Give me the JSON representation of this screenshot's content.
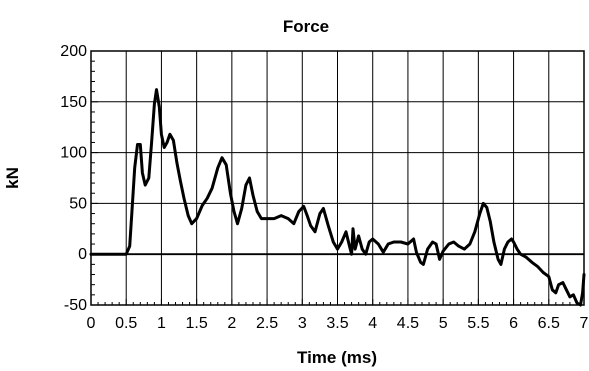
{
  "chart_data": {
    "type": "line",
    "title": "Force",
    "xlabel": "Time (ms)",
    "ylabel": "kN",
    "xlim": [
      0,
      7
    ],
    "ylim": [
      -50,
      200
    ],
    "x_ticks": [
      0,
      0.5,
      1,
      1.5,
      2,
      2.5,
      3,
      3.5,
      4,
      4.5,
      5,
      5.5,
      6,
      6.5,
      7
    ],
    "x_tick_labels": [
      "0",
      "0.5",
      "1",
      "1.5",
      "2",
      "2.5",
      "3",
      "3.5",
      "4",
      "4.5",
      "5",
      "5.5",
      "6",
      "6.5",
      "7"
    ],
    "y_ticks": [
      -50,
      0,
      50,
      100,
      150,
      200
    ],
    "y_tick_labels": [
      "-50",
      "0",
      "50",
      "100",
      "150",
      "200"
    ],
    "grid": true,
    "line_color": "#000000",
    "series": [
      {
        "x": [
          0,
          0.5,
          0.55,
          0.58,
          0.62,
          0.66,
          0.7,
          0.73,
          0.77,
          0.82,
          0.86,
          0.9,
          0.93,
          0.97,
          1.0,
          1.04,
          1.08,
          1.12,
          1.17,
          1.22,
          1.27,
          1.32,
          1.38,
          1.43,
          1.5,
          1.58,
          1.65,
          1.72,
          1.8,
          1.86,
          1.92,
          1.98,
          2.03,
          2.08,
          2.14,
          2.2,
          2.25,
          2.3,
          2.36,
          2.42,
          2.5,
          2.6,
          2.7,
          2.8,
          2.88,
          2.95,
          3.02,
          3.07,
          3.12,
          3.18,
          3.25,
          3.3,
          3.37,
          3.44,
          3.5,
          3.56,
          3.62,
          3.67,
          3.7,
          3.72,
          3.75,
          3.8,
          3.85,
          3.9,
          3.95,
          4.0,
          4.08,
          4.15,
          4.22,
          4.3,
          4.4,
          4.5,
          4.58,
          4.62,
          4.68,
          4.72,
          4.78,
          4.85,
          4.9,
          4.95,
          5.0,
          5.08,
          5.15,
          5.22,
          5.3,
          5.38,
          5.45,
          5.52,
          5.57,
          5.62,
          5.67,
          5.72,
          5.78,
          5.82,
          5.87,
          5.92,
          5.97,
          6.0,
          6.05,
          6.1,
          6.18,
          6.26,
          6.34,
          6.42,
          6.5,
          6.55,
          6.6,
          6.64,
          6.7,
          6.75,
          6.8,
          6.85,
          6.9,
          6.95,
          6.98,
          7.0
        ],
        "y": [
          0,
          0,
          8,
          40,
          85,
          108,
          108,
          80,
          68,
          75,
          110,
          148,
          162,
          145,
          118,
          105,
          110,
          118,
          112,
          90,
          72,
          55,
          38,
          30,
          35,
          48,
          55,
          65,
          85,
          95,
          88,
          60,
          42,
          30,
          45,
          68,
          75,
          58,
          42,
          35,
          35,
          35,
          38,
          35,
          30,
          42,
          47,
          38,
          28,
          22,
          40,
          45,
          28,
          12,
          5,
          12,
          22,
          8,
          0,
          25,
          5,
          18,
          5,
          0,
          12,
          15,
          10,
          2,
          10,
          12,
          12,
          10,
          15,
          2,
          -8,
          -10,
          5,
          12,
          10,
          -5,
          3,
          10,
          12,
          8,
          5,
          10,
          22,
          40,
          50,
          46,
          32,
          12,
          -5,
          -10,
          5,
          12,
          15,
          12,
          5,
          0,
          -3,
          -8,
          -12,
          -18,
          -22,
          -35,
          -38,
          -30,
          -28,
          -35,
          -42,
          -40,
          -48,
          -50,
          -38,
          -20
        ]
      }
    ]
  }
}
